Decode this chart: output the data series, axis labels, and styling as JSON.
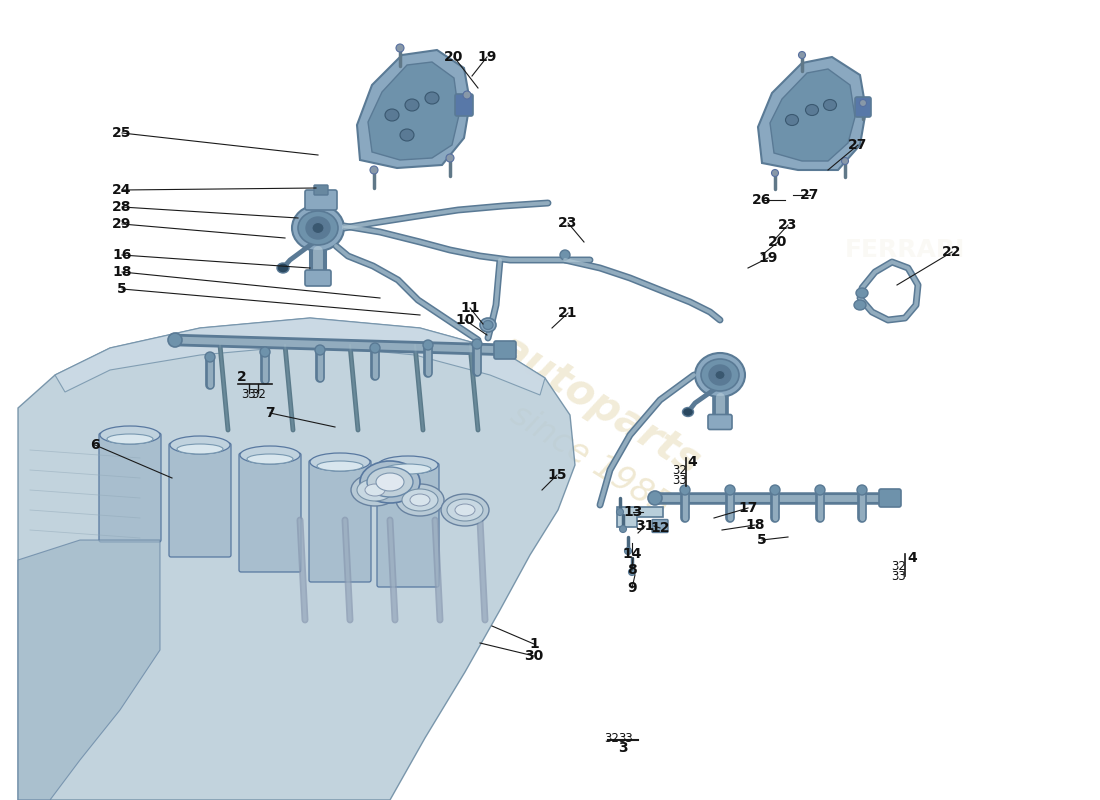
{
  "bg_color": "#ffffff",
  "line_color": "#1a1a1a",
  "text_color": "#111111",
  "part_steel": "#8aa8c0",
  "part_steel_dark": "#5a7a95",
  "part_steel_light": "#b8ceda",
  "part_steel_mid": "#6e92ab",
  "engine_fill": "#c2d4e0",
  "engine_edge": "#7090a8",
  "watermark_color": "#d4c080",
  "wm_alpha": 0.35,
  "font_size_label": 10,
  "font_size_small": 8.5,
  "lw_pipe": 5.5,
  "lw_ann": 0.8,
  "annotations_left": [
    [
      "25",
      125,
      137
    ],
    [
      "24",
      125,
      193
    ],
    [
      "28",
      125,
      210
    ],
    [
      "29",
      125,
      227
    ],
    [
      "16",
      125,
      257
    ],
    [
      "18",
      125,
      274
    ],
    [
      "5",
      125,
      291
    ]
  ],
  "annotations_top": [
    [
      "20",
      456,
      57
    ],
    [
      "19",
      487,
      57
    ]
  ],
  "annotations_right_upper": [
    [
      "27",
      855,
      147
    ],
    [
      "26",
      762,
      203
    ],
    [
      "22",
      952,
      254
    ]
  ],
  "annotations_right_pump": [
    [
      "23",
      787,
      228
    ],
    [
      "20",
      777,
      245
    ],
    [
      "19",
      767,
      261
    ]
  ],
  "annotations_center": [
    [
      "23",
      568,
      225
    ],
    [
      "21",
      568,
      313
    ],
    [
      "11",
      471,
      309
    ],
    [
      "10",
      467,
      320
    ]
  ],
  "annotations_left_lower": [
    [
      "6",
      97,
      447
    ],
    [
      "7",
      272,
      415
    ]
  ],
  "annotations_right_lower": [
    [
      "17",
      748,
      510
    ],
    [
      "18",
      755,
      527
    ],
    [
      "5",
      762,
      543
    ],
    [
      "15",
      558,
      476
    ],
    [
      "1",
      535,
      645
    ],
    [
      "30",
      535,
      657
    ],
    [
      "13",
      632,
      513
    ],
    [
      "12",
      659,
      529
    ],
    [
      "31",
      643,
      527
    ],
    [
      "14",
      632,
      556
    ],
    [
      "8",
      632,
      572
    ],
    [
      "9",
      632,
      590
    ]
  ]
}
